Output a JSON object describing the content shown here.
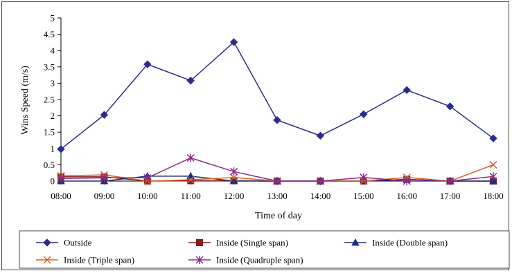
{
  "chart_data": {
    "type": "line",
    "title": "",
    "xlabel": "Time of day",
    "ylabel": "Wins Speed  (m/s)",
    "categories": [
      "08:00",
      "09:00",
      "10:00",
      "11:00",
      "12:00",
      "13:00",
      "14:00",
      "15:00",
      "16:00",
      "17:00",
      "18:00"
    ],
    "yticks": [
      "0",
      "0.5",
      "1",
      "1.5",
      "2",
      "2.5",
      "3",
      "3.5",
      "4",
      "4.5",
      "5"
    ],
    "ylim": [
      0,
      5
    ],
    "grid": false,
    "legend_position": "bottom",
    "series": [
      {
        "name": "Outside",
        "color": "#2b2b8c",
        "marker": "diamond",
        "values": [
          0.98,
          2.03,
          3.58,
          3.08,
          4.26,
          1.87,
          1.39,
          2.05,
          2.79,
          2.29,
          1.31
        ]
      },
      {
        "name": "Inside (Single span)",
        "color": "#8b1a1a",
        "marker": "square",
        "values": [
          0.13,
          0.13,
          0.0,
          0.01,
          0.01,
          0.0,
          0.0,
          0.0,
          0.05,
          0.0,
          0.0
        ]
      },
      {
        "name": "Inside (Double span)",
        "color": "#1f2f7a",
        "marker": "triangle",
        "values": [
          0.0,
          0.0,
          0.15,
          0.15,
          0.0,
          0.0,
          0.0,
          0.0,
          0.05,
          0.0,
          0.0
        ]
      },
      {
        "name": "Inside (Triple span)",
        "color": "#d2622a",
        "marker": "x",
        "values": [
          0.16,
          0.19,
          0.0,
          0.04,
          0.11,
          0.0,
          0.0,
          0.0,
          0.11,
          0.0,
          0.5
        ]
      },
      {
        "name": "Inside (Quadruple span)",
        "color": "#8b2a8b",
        "marker": "asterisk",
        "values": [
          0.08,
          0.1,
          0.1,
          0.71,
          0.29,
          0.0,
          0.0,
          0.11,
          0.0,
          0.0,
          0.14
        ]
      }
    ]
  }
}
